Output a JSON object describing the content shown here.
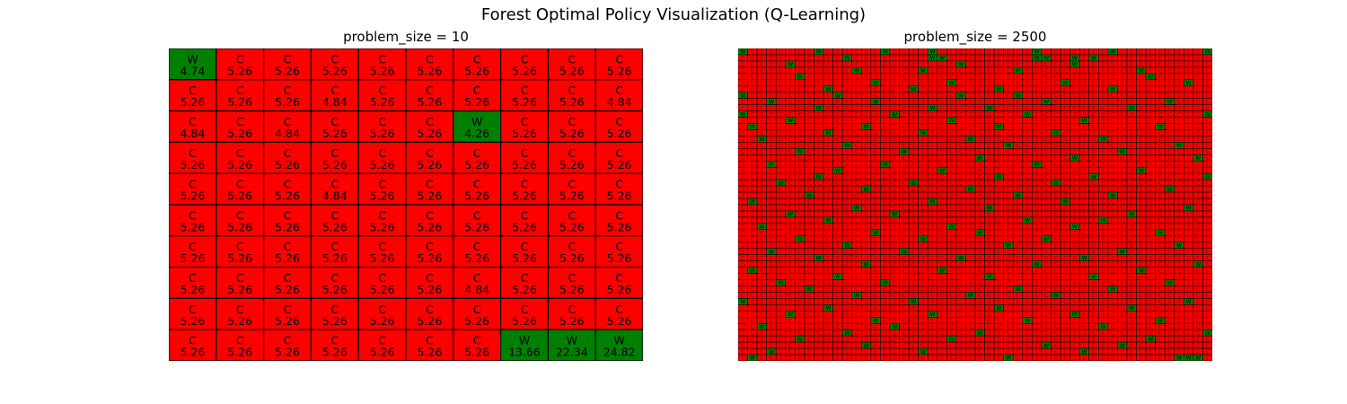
{
  "title": "Forest Optimal Policy Visualization (Q-Learning)",
  "colors": {
    "W": "#008000",
    "C": "#ff0000",
    "grid_line": "#000000"
  },
  "chart_data": [
    {
      "type": "heatmap",
      "title": "problem_size = 10",
      "rows": 10,
      "cols": 10,
      "cells": [
        [
          [
            "W",
            "4.74"
          ],
          [
            "C",
            "5.26"
          ],
          [
            "C",
            "5.26"
          ],
          [
            "C",
            "5.26"
          ],
          [
            "C",
            "5.26"
          ],
          [
            "C",
            "5.26"
          ],
          [
            "C",
            "5.26"
          ],
          [
            "C",
            "5.26"
          ],
          [
            "C",
            "5.26"
          ],
          [
            "C",
            "5.26"
          ]
        ],
        [
          [
            "C",
            "5.26"
          ],
          [
            "C",
            "5.26"
          ],
          [
            "C",
            "5.26"
          ],
          [
            "C",
            "4.84"
          ],
          [
            "C",
            "5.26"
          ],
          [
            "C",
            "5.26"
          ],
          [
            "C",
            "5.26"
          ],
          [
            "C",
            "5.26"
          ],
          [
            "C",
            "5.26"
          ],
          [
            "C",
            "4.84"
          ]
        ],
        [
          [
            "C",
            "4.84"
          ],
          [
            "C",
            "5.26"
          ],
          [
            "C",
            "4.84"
          ],
          [
            "C",
            "5.26"
          ],
          [
            "C",
            "5.26"
          ],
          [
            "C",
            "5.26"
          ],
          [
            "W",
            "4.26"
          ],
          [
            "C",
            "5.26"
          ],
          [
            "C",
            "5.26"
          ],
          [
            "C",
            "5.26"
          ]
        ],
        [
          [
            "C",
            "5.26"
          ],
          [
            "C",
            "5.26"
          ],
          [
            "C",
            "5.26"
          ],
          [
            "C",
            "5.26"
          ],
          [
            "C",
            "5.26"
          ],
          [
            "C",
            "5.26"
          ],
          [
            "C",
            "5.26"
          ],
          [
            "C",
            "5.26"
          ],
          [
            "C",
            "5.26"
          ],
          [
            "C",
            "5.26"
          ]
        ],
        [
          [
            "C",
            "5.26"
          ],
          [
            "C",
            "5.26"
          ],
          [
            "C",
            "5.26"
          ],
          [
            "C",
            "4.84"
          ],
          [
            "C",
            "5.26"
          ],
          [
            "C",
            "5.26"
          ],
          [
            "C",
            "5.26"
          ],
          [
            "C",
            "5.26"
          ],
          [
            "C",
            "5.26"
          ],
          [
            "C",
            "5.26"
          ]
        ],
        [
          [
            "C",
            "5.26"
          ],
          [
            "C",
            "5.26"
          ],
          [
            "C",
            "5.26"
          ],
          [
            "C",
            "5.26"
          ],
          [
            "C",
            "5.26"
          ],
          [
            "C",
            "5.26"
          ],
          [
            "C",
            "5.26"
          ],
          [
            "C",
            "5.26"
          ],
          [
            "C",
            "5.26"
          ],
          [
            "C",
            "5.26"
          ]
        ],
        [
          [
            "C",
            "5.26"
          ],
          [
            "C",
            "5.26"
          ],
          [
            "C",
            "5.26"
          ],
          [
            "C",
            "5.26"
          ],
          [
            "C",
            "5.26"
          ],
          [
            "C",
            "5.26"
          ],
          [
            "C",
            "5.26"
          ],
          [
            "C",
            "5.26"
          ],
          [
            "C",
            "5.26"
          ],
          [
            "C",
            "5.26"
          ]
        ],
        [
          [
            "C",
            "5.26"
          ],
          [
            "C",
            "5.26"
          ],
          [
            "C",
            "5.26"
          ],
          [
            "C",
            "5.26"
          ],
          [
            "C",
            "5.26"
          ],
          [
            "C",
            "5.26"
          ],
          [
            "C",
            "4.84"
          ],
          [
            "C",
            "5.26"
          ],
          [
            "C",
            "5.26"
          ],
          [
            "C",
            "5.26"
          ]
        ],
        [
          [
            "C",
            "5.26"
          ],
          [
            "C",
            "5.26"
          ],
          [
            "C",
            "5.26"
          ],
          [
            "C",
            "5.26"
          ],
          [
            "C",
            "5.26"
          ],
          [
            "C",
            "5.26"
          ],
          [
            "C",
            "5.26"
          ],
          [
            "C",
            "5.26"
          ],
          [
            "C",
            "5.26"
          ],
          [
            "C",
            "5.26"
          ]
        ],
        [
          [
            "C",
            "5.26"
          ],
          [
            "C",
            "5.26"
          ],
          [
            "C",
            "5.26"
          ],
          [
            "C",
            "5.26"
          ],
          [
            "C",
            "5.26"
          ],
          [
            "C",
            "5.26"
          ],
          [
            "C",
            "5.26"
          ],
          [
            "W",
            "13.66"
          ],
          [
            "W",
            "22.34"
          ],
          [
            "W",
            "24.82"
          ]
        ]
      ]
    },
    {
      "type": "heatmap",
      "title": "problem_size = 2500",
      "rows": 50,
      "cols": 50,
      "w_cells": [
        [
          0,
          0
        ],
        [
          0,
          8
        ],
        [
          0,
          15
        ],
        [
          0,
          20
        ],
        [
          0,
          31
        ],
        [
          0,
          39
        ],
        [
          0,
          49
        ],
        [
          1,
          11
        ],
        [
          1,
          20
        ],
        [
          1,
          21
        ],
        [
          1,
          31
        ],
        [
          1,
          32
        ],
        [
          1,
          35
        ],
        [
          1,
          37
        ],
        [
          2,
          5
        ],
        [
          2,
          23
        ],
        [
          2,
          35
        ],
        [
          3,
          12
        ],
        [
          3,
          19
        ],
        [
          3,
          29
        ],
        [
          3,
          42
        ],
        [
          4,
          6
        ],
        [
          4,
          43
        ],
        [
          5,
          14
        ],
        [
          5,
          22
        ],
        [
          5,
          34
        ],
        [
          5,
          47
        ],
        [
          6,
          9
        ],
        [
          6,
          18
        ],
        [
          6,
          27
        ],
        [
          6,
          39
        ],
        [
          7,
          0
        ],
        [
          7,
          10
        ],
        [
          7,
          23
        ],
        [
          7,
          29
        ],
        [
          8,
          3
        ],
        [
          8,
          14
        ],
        [
          8,
          32
        ],
        [
          8,
          45
        ],
        [
          9,
          8
        ],
        [
          9,
          20
        ],
        [
          9,
          26
        ],
        [
          9,
          41
        ],
        [
          10,
          0
        ],
        [
          10,
          16
        ],
        [
          10,
          30
        ],
        [
          10,
          49
        ],
        [
          11,
          5
        ],
        [
          11,
          22
        ],
        [
          11,
          36
        ],
        [
          12,
          1
        ],
        [
          12,
          13
        ],
        [
          12,
          27
        ],
        [
          12,
          44
        ],
        [
          13,
          9
        ],
        [
          13,
          19
        ],
        [
          13,
          33
        ],
        [
          14,
          2
        ],
        [
          14,
          24
        ],
        [
          14,
          38
        ],
        [
          15,
          11
        ],
        [
          15,
          28
        ],
        [
          15,
          46
        ],
        [
          16,
          6
        ],
        [
          16,
          17
        ],
        [
          16,
          40
        ],
        [
          17,
          25
        ],
        [
          17,
          35
        ],
        [
          17,
          48
        ],
        [
          18,
          3
        ],
        [
          18,
          15
        ],
        [
          18,
          31
        ],
        [
          19,
          10
        ],
        [
          19,
          21
        ],
        [
          19,
          42
        ],
        [
          20,
          8
        ],
        [
          20,
          27
        ],
        [
          20,
          37
        ],
        [
          20,
          49
        ],
        [
          21,
          4
        ],
        [
          21,
          18
        ],
        [
          21,
          33
        ],
        [
          22,
          13
        ],
        [
          22,
          24
        ],
        [
          22,
          45
        ],
        [
          23,
          7
        ],
        [
          23,
          29
        ],
        [
          23,
          39
        ],
        [
          24,
          1
        ],
        [
          24,
          20
        ],
        [
          24,
          34
        ],
        [
          25,
          12
        ],
        [
          25,
          26
        ],
        [
          25,
          47
        ],
        [
          26,
          5
        ],
        [
          26,
          16
        ],
        [
          26,
          41
        ],
        [
          27,
          9
        ],
        [
          27,
          30
        ],
        [
          27,
          38
        ],
        [
          28,
          2
        ],
        [
          28,
          22
        ],
        [
          28,
          35
        ],
        [
          29,
          14
        ],
        [
          29,
          25
        ],
        [
          29,
          44
        ],
        [
          30,
          6
        ],
        [
          30,
          19
        ],
        [
          30,
          32
        ],
        [
          31,
          11
        ],
        [
          31,
          28
        ],
        [
          31,
          46
        ],
        [
          32,
          3
        ],
        [
          32,
          17
        ],
        [
          32,
          40
        ],
        [
          33,
          8
        ],
        [
          33,
          23
        ],
        [
          33,
          36
        ],
        [
          34,
          13
        ],
        [
          34,
          31
        ],
        [
          34,
          48
        ],
        [
          35,
          1
        ],
        [
          35,
          21
        ],
        [
          35,
          42
        ],
        [
          36,
          10
        ],
        [
          36,
          26
        ],
        [
          36,
          37
        ],
        [
          37,
          4
        ],
        [
          37,
          15
        ],
        [
          37,
          45
        ],
        [
          38,
          7
        ],
        [
          38,
          29
        ],
        [
          38,
          39
        ],
        [
          39,
          12
        ],
        [
          39,
          24
        ],
        [
          39,
          33
        ],
        [
          40,
          0
        ],
        [
          40,
          18
        ],
        [
          40,
          47
        ],
        [
          41,
          9
        ],
        [
          41,
          27
        ],
        [
          41,
          41
        ],
        [
          42,
          5
        ],
        [
          42,
          20
        ],
        [
          42,
          35
        ],
        [
          43,
          14
        ],
        [
          43,
          30
        ],
        [
          43,
          44
        ],
        [
          44,
          2
        ],
        [
          44,
          16
        ],
        [
          44,
          38
        ],
        [
          45,
          11
        ],
        [
          45,
          25
        ],
        [
          45,
          49
        ],
        [
          46,
          6
        ],
        [
          46,
          22
        ],
        [
          46,
          43
        ],
        [
          47,
          13
        ],
        [
          47,
          32
        ],
        [
          47,
          40
        ],
        [
          48,
          3
        ],
        [
          48,
          19
        ],
        [
          48,
          36
        ],
        [
          49,
          1
        ],
        [
          49,
          28
        ],
        [
          49,
          46
        ],
        [
          49,
          47
        ],
        [
          49,
          48
        ]
      ]
    }
  ]
}
